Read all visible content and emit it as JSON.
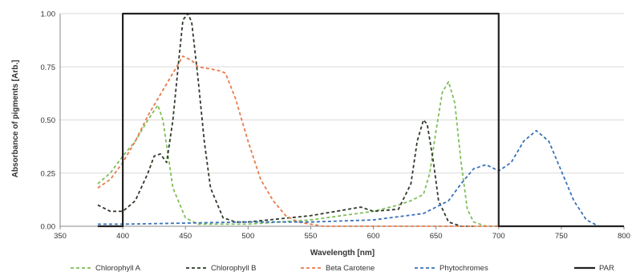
{
  "chart_data": {
    "type": "line",
    "title": "",
    "xlabel": "Wavelength [nm]",
    "ylabel": "Absorbance of pigments [Arb.]",
    "xlim": [
      350,
      800
    ],
    "ylim": [
      0,
      1
    ],
    "x_ticks": [
      "350",
      "400",
      "450",
      "500",
      "550",
      "600",
      "650",
      "700",
      "750",
      "800"
    ],
    "y_ticks": [
      "0.00",
      "0.25",
      "0.50",
      "0.75",
      "1.00"
    ],
    "grid": "horizontal",
    "legend_position": "bottom",
    "series": [
      {
        "name": "Chlorophyll A",
        "color": "#7fbf5a",
        "style": "dashed",
        "x": [
          380,
          390,
          400,
          410,
          420,
          428,
          432,
          440,
          450,
          460,
          480,
          500,
          550,
          600,
          620,
          630,
          640,
          645,
          650,
          655,
          660,
          665,
          670,
          675,
          680,
          690,
          700
        ],
        "y": [
          0.2,
          0.25,
          0.33,
          0.4,
          0.5,
          0.57,
          0.5,
          0.18,
          0.04,
          0.01,
          0.01,
          0.01,
          0.03,
          0.07,
          0.1,
          0.12,
          0.15,
          0.25,
          0.45,
          0.63,
          0.68,
          0.58,
          0.3,
          0.08,
          0.02,
          0.0,
          0.0
        ]
      },
      {
        "name": "Chlorophyll B",
        "color": "#2e3a2a",
        "style": "dashed",
        "x": [
          380,
          390,
          400,
          410,
          420,
          425,
          430,
          435,
          440,
          445,
          448,
          452,
          455,
          460,
          465,
          470,
          480,
          490,
          500,
          550,
          580,
          590,
          600,
          620,
          630,
          635,
          640,
          643,
          648,
          652,
          660,
          670,
          680
        ],
        "y": [
          0.1,
          0.07,
          0.07,
          0.12,
          0.25,
          0.33,
          0.34,
          0.3,
          0.5,
          0.8,
          0.97,
          1.0,
          0.96,
          0.7,
          0.4,
          0.18,
          0.04,
          0.02,
          0.02,
          0.05,
          0.08,
          0.09,
          0.07,
          0.08,
          0.2,
          0.4,
          0.5,
          0.48,
          0.3,
          0.12,
          0.02,
          0.0,
          0.0
        ]
      },
      {
        "name": "Beta Carotene",
        "color": "#e87a4a",
        "style": "dashed",
        "x": [
          380,
          390,
          400,
          410,
          420,
          430,
          440,
          448,
          455,
          460,
          470,
          478,
          482,
          490,
          500,
          510,
          520,
          530,
          540,
          550,
          560,
          580,
          600,
          650,
          700,
          750,
          800
        ],
        "y": [
          0.18,
          0.22,
          0.3,
          0.4,
          0.52,
          0.62,
          0.72,
          0.8,
          0.78,
          0.75,
          0.74,
          0.73,
          0.72,
          0.6,
          0.4,
          0.22,
          0.12,
          0.05,
          0.02,
          0.01,
          0.0,
          0.0,
          0.0,
          0.0,
          0.0,
          0.0,
          0.0
        ]
      },
      {
        "name": "Phytochromes",
        "color": "#3a72b8",
        "style": "dashed",
        "x": [
          380,
          400,
          500,
          550,
          600,
          640,
          660,
          670,
          680,
          690,
          700,
          710,
          720,
          730,
          740,
          750,
          760,
          770,
          780
        ],
        "y": [
          0.01,
          0.01,
          0.02,
          0.02,
          0.03,
          0.06,
          0.12,
          0.2,
          0.27,
          0.29,
          0.26,
          0.3,
          0.4,
          0.45,
          0.4,
          0.26,
          0.12,
          0.03,
          0.0
        ]
      },
      {
        "name": "PAR",
        "color": "#222222",
        "style": "solid",
        "x": [
          380,
          400,
          400,
          700,
          700,
          800
        ],
        "y": [
          0,
          0,
          1,
          1,
          0,
          0
        ]
      }
    ]
  }
}
